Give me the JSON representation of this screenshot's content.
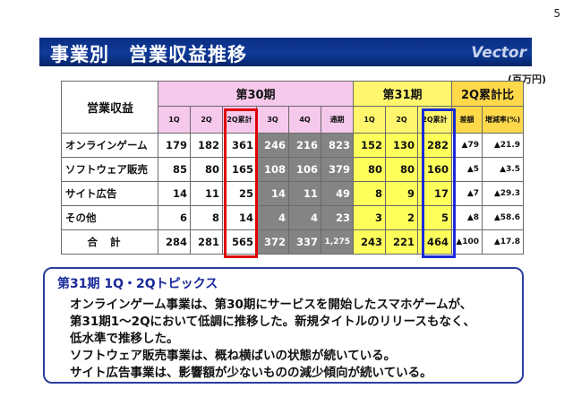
{
  "page_number": "5",
  "title": "事業別　営業収益推移",
  "logo_text": "Vector",
  "unit": "(百万円)",
  "table": {
    "corner_label": "営業収益",
    "period30": "第30期",
    "period31": "第31期",
    "period_compare": "2Q累計比",
    "sub30": [
      "1Q",
      "2Q",
      "2Q累計",
      "3Q",
      "4Q",
      "通期"
    ],
    "sub31": [
      "1Q",
      "2Q",
      "2Q累計"
    ],
    "sub_compare": [
      "差額",
      "増減率(%)"
    ],
    "rows": [
      {
        "label": "オンラインゲーム",
        "q1_30": "179",
        "q2_30": "182",
        "cum_30": "361",
        "q3_30": "246",
        "q4_30": "216",
        "fy_30": "823",
        "q1_31": "152",
        "q2_31": "130",
        "cum_31": "282",
        "diff": "▲79",
        "rate": "▲21.9"
      },
      {
        "label": "ソフトウェア販売",
        "q1_30": "85",
        "q2_30": "80",
        "cum_30": "165",
        "q3_30": "108",
        "q4_30": "106",
        "fy_30": "379",
        "q1_31": "80",
        "q2_31": "80",
        "cum_31": "160",
        "diff": "▲5",
        "rate": "▲3.5"
      },
      {
        "label": "サイト広告",
        "q1_30": "14",
        "q2_30": "11",
        "cum_30": "25",
        "q3_30": "14",
        "q4_30": "11",
        "fy_30": "49",
        "q1_31": "8",
        "q2_31": "9",
        "cum_31": "17",
        "diff": "▲7",
        "rate": "▲29.3"
      },
      {
        "label": "その他",
        "q1_30": "6",
        "q2_30": "8",
        "cum_30": "14",
        "q3_30": "4",
        "q4_30": "4",
        "fy_30": "23",
        "q1_31": "3",
        "q2_31": "2",
        "cum_31": "5",
        "diff": "▲8",
        "rate": "▲58.6"
      },
      {
        "label": "合計",
        "q1_30": "284",
        "q2_30": "281",
        "cum_30": "565",
        "q3_30": "372",
        "q4_30": "337",
        "fy_30": "1,275",
        "q1_31": "243",
        "q2_31": "221",
        "cum_31": "464",
        "diff": "▲100",
        "rate": "▲17.8"
      }
    ]
  },
  "topics": {
    "heading": "第31期 1Q・2Qトピックス",
    "lines": [
      "オンラインゲーム事業は、第30期にサービスを開始したスマホゲームが、",
      "第31期1～2Qにおいて低調に推移した。新規タイトルのリリースもなく、",
      "低水準で推移した。",
      "ソフトウェア販売事業は、概ね横ばいの状態が続いている。",
      "サイト広告事業は、影響額が少ないものの減少傾向が続いている。"
    ]
  },
  "colors": {
    "title_bar": "#0f3a9a",
    "period30_header": "#f6c8ec",
    "period31_header": "#fff66e",
    "compare_header": "#ffd94a",
    "highlight_red": "#e00000",
    "highlight_blue": "#1a2ad6"
  }
}
